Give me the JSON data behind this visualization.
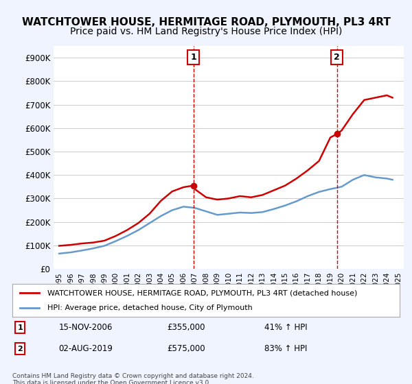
{
  "title": "WATCHTOWER HOUSE, HERMITAGE ROAD, PLYMOUTH, PL3 4RT",
  "subtitle": "Price paid vs. HM Land Registry's House Price Index (HPI)",
  "title_fontsize": 11,
  "subtitle_fontsize": 10,
  "bg_color": "#f0f4ff",
  "plot_bg_color": "#ffffff",
  "red_color": "#cc0000",
  "blue_color": "#6699cc",
  "sale1_x": 2006.87,
  "sale1_y": 355000,
  "sale1_label": "1",
  "sale1_date": "15-NOV-2006",
  "sale1_price": "£355,000",
  "sale1_hpi": "41% ↑ HPI",
  "sale2_x": 2019.58,
  "sale2_y": 575000,
  "sale2_label": "2",
  "sale2_date": "02-AUG-2019",
  "sale2_price": "£575,000",
  "sale2_hpi": "83% ↑ HPI",
  "ylim": [
    0,
    950000
  ],
  "xlim_start": 1994.5,
  "xlim_end": 2025.5,
  "yticks": [
    0,
    100000,
    200000,
    300000,
    400000,
    500000,
    600000,
    700000,
    800000,
    900000
  ],
  "ytick_labels": [
    "£0",
    "£100K",
    "£200K",
    "£300K",
    "£400K",
    "£500K",
    "£600K",
    "£700K",
    "£800K",
    "£900K"
  ],
  "xticks": [
    1995,
    1996,
    1997,
    1998,
    1999,
    2000,
    2001,
    2002,
    2003,
    2004,
    2005,
    2006,
    2007,
    2008,
    2009,
    2010,
    2011,
    2012,
    2013,
    2014,
    2015,
    2016,
    2017,
    2018,
    2019,
    2020,
    2021,
    2022,
    2023,
    2024,
    2025
  ],
  "legend_label_red": "WATCHTOWER HOUSE, HERMITAGE ROAD, PLYMOUTH, PL3 4RT (detached house)",
  "legend_label_blue": "HPI: Average price, detached house, City of Plymouth",
  "footer1": "Contains HM Land Registry data © Crown copyright and database right 2024.",
  "footer2": "This data is licensed under the Open Government Licence v3.0.",
  "red_x": [
    1995,
    1996,
    1997,
    1998,
    1999,
    2000,
    2001,
    2002,
    2003,
    2004,
    2005,
    2006,
    2006.87,
    2007,
    2008,
    2009,
    2010,
    2011,
    2012,
    2013,
    2014,
    2015,
    2016,
    2017,
    2018,
    2019,
    2019.58,
    2020,
    2021,
    2022,
    2023,
    2024,
    2024.5
  ],
  "red_y": [
    98000,
    102000,
    108000,
    112000,
    120000,
    140000,
    165000,
    195000,
    235000,
    290000,
    330000,
    348000,
    355000,
    340000,
    305000,
    295000,
    300000,
    310000,
    305000,
    315000,
    335000,
    355000,
    385000,
    420000,
    460000,
    560000,
    575000,
    590000,
    660000,
    720000,
    730000,
    740000,
    730000
  ],
  "blue_x": [
    1995,
    1996,
    1997,
    1998,
    1999,
    2000,
    2001,
    2002,
    2003,
    2004,
    2005,
    2006,
    2007,
    2008,
    2009,
    2010,
    2011,
    2012,
    2013,
    2014,
    2015,
    2016,
    2017,
    2018,
    2019,
    2020,
    2021,
    2022,
    2023,
    2024,
    2024.5
  ],
  "blue_y": [
    65000,
    70000,
    78000,
    87000,
    98000,
    118000,
    140000,
    165000,
    195000,
    225000,
    250000,
    265000,
    260000,
    245000,
    230000,
    235000,
    240000,
    238000,
    242000,
    255000,
    270000,
    288000,
    310000,
    328000,
    340000,
    350000,
    380000,
    400000,
    390000,
    385000,
    380000
  ]
}
